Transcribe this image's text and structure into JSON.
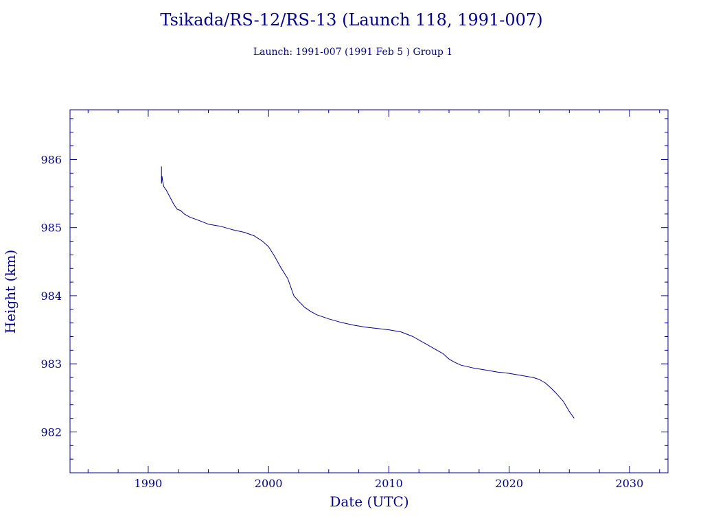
{
  "colors": {
    "ink": "#00008b",
    "background": "#ffffff"
  },
  "chart_data": {
    "type": "line",
    "title": "Tsikada/RS-12/RS-13 (Launch 118, 1991-007)",
    "subtitle": "Launch: 1991-007  (1991 Feb  5 )  Group 1",
    "xlabel": "Date (UTC)",
    "ylabel": "Height (km)",
    "xlim": [
      1983.5,
      2033.2
    ],
    "ylim": [
      981.4,
      986.73
    ],
    "x_ticks": [
      1990,
      2000,
      2010,
      2020,
      2030
    ],
    "x_tick_labels": [
      "1990",
      "2000",
      "2010",
      "2020",
      "2030"
    ],
    "y_ticks": [
      982,
      983,
      984,
      985,
      986
    ],
    "y_tick_labels": [
      "982",
      "983",
      "984",
      "985",
      "986"
    ],
    "grid": false,
    "series": [
      {
        "x": [
          1991.1,
          1991.1,
          1991.15,
          1991.2,
          1991.3,
          1991.5,
          1991.8,
          1992.1,
          1992.4,
          1992.7,
          1993.0,
          1993.5,
          1994.0,
          1995.0,
          1996.0,
          1997.0,
          1998.0,
          1998.8,
          1999.5,
          2000.0,
          2000.5,
          2001.0,
          2001.6,
          2002.1,
          2002.5,
          2003.0,
          2003.5,
          2004.0,
          2005.0,
          2006.0,
          2007.0,
          2008.0,
          2009.0,
          2010.0,
          2011.0,
          2012.0,
          2013.0,
          2014.0,
          2014.5,
          2015.0,
          2015.5,
          2016.0,
          2017.0,
          2018.0,
          2019.0,
          2020.0,
          2021.0,
          2022.0,
          2022.5,
          2023.0,
          2023.5,
          2024.0,
          2024.5,
          2025.0,
          2025.4
        ],
        "y": [
          985.9,
          985.65,
          985.75,
          985.68,
          985.6,
          985.55,
          985.45,
          985.35,
          985.27,
          985.25,
          985.2,
          985.15,
          985.12,
          985.05,
          985.02,
          984.97,
          984.93,
          984.88,
          984.8,
          984.72,
          984.58,
          984.42,
          984.25,
          984.0,
          983.92,
          983.83,
          983.77,
          983.72,
          983.66,
          983.61,
          983.57,
          983.54,
          983.52,
          983.5,
          983.47,
          983.4,
          983.3,
          983.2,
          983.15,
          983.07,
          983.02,
          982.98,
          982.94,
          982.91,
          982.88,
          982.86,
          982.83,
          982.8,
          982.77,
          982.72,
          982.64,
          982.55,
          982.45,
          982.3,
          982.2
        ]
      }
    ]
  }
}
